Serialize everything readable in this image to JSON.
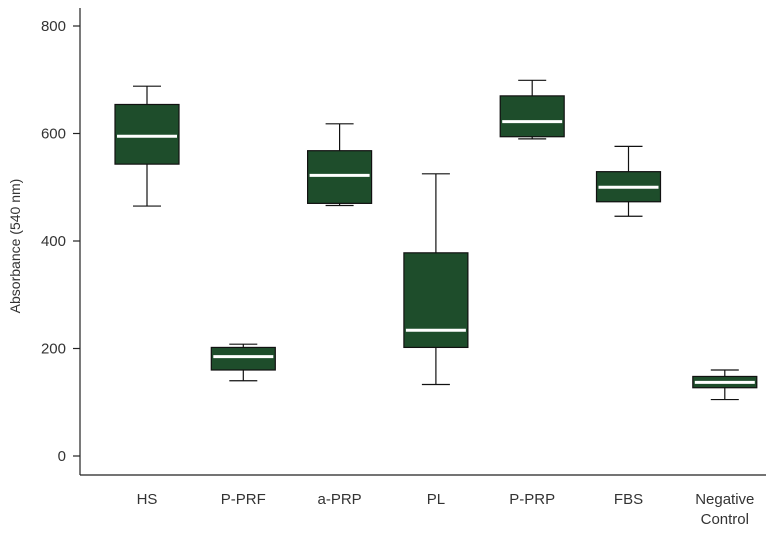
{
  "chart_data": {
    "type": "box",
    "ylabel": "Absorbance (540 nm)",
    "xlabel": "",
    "ylim": [
      -30,
      830
    ],
    "yticks": [
      0,
      200,
      400,
      600,
      800
    ],
    "grid": false,
    "colors": {
      "box_fill": "#1e4d2b",
      "median": "#ffffff",
      "lines": "#111111"
    },
    "categories": [
      {
        "label_lines": [
          "HS"
        ],
        "min": 465,
        "q1": 543,
        "median": 595,
        "q3": 654,
        "max": 688
      },
      {
        "label_lines": [
          "P-PRF"
        ],
        "min": 140,
        "q1": 160,
        "median": 185,
        "q3": 202,
        "max": 208
      },
      {
        "label_lines": [
          "a-PRP"
        ],
        "min": 466,
        "q1": 470,
        "median": 522,
        "q3": 568,
        "max": 618
      },
      {
        "label_lines": [
          "PL"
        ],
        "min": 133,
        "q1": 202,
        "median": 234,
        "q3": 378,
        "max": 525
      },
      {
        "label_lines": [
          "P-PRP"
        ],
        "min": 590,
        "q1": 594,
        "median": 622,
        "q3": 670,
        "max": 699
      },
      {
        "label_lines": [
          "FBS"
        ],
        "min": 446,
        "q1": 473,
        "median": 500,
        "q3": 529,
        "max": 576
      },
      {
        "label_lines": [
          "Negative",
          "Control"
        ],
        "min": 105,
        "q1": 127,
        "median": 137,
        "q3": 148,
        "max": 160
      }
    ]
  }
}
